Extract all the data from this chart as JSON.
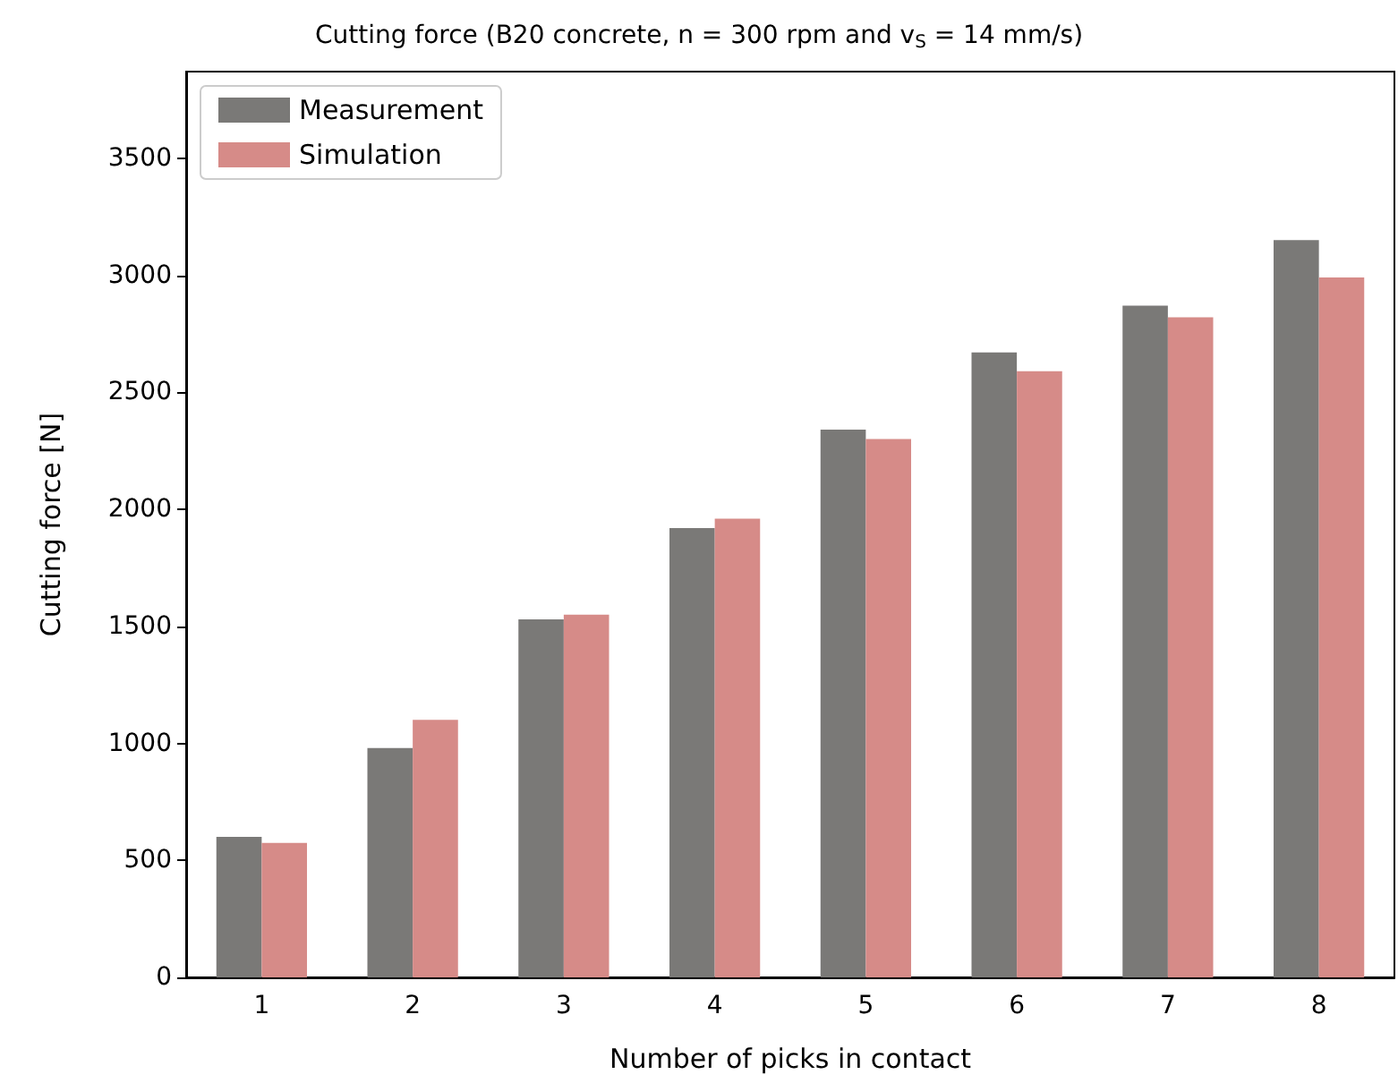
{
  "chart_data": {
    "type": "bar",
    "title": "Cutting force (B20 concrete, n = 300 rpm and v$_{S}$ = 14 mm/s)",
    "xlabel": "Number of picks in contact",
    "ylabel": "Cutting force [N]",
    "categories": [
      "1",
      "2",
      "3",
      "4",
      "5",
      "6",
      "7",
      "8"
    ],
    "series": [
      {
        "name": "Measurement",
        "color": "#7a7977",
        "values": [
          600,
          980,
          1530,
          1920,
          2340,
          2670,
          2870,
          3150
        ]
      },
      {
        "name": "Simulation",
        "color": "#d68b88",
        "values": [
          575,
          1100,
          1550,
          1960,
          2300,
          2590,
          2820,
          2990
        ]
      }
    ],
    "ylim": [
      0,
      3870
    ],
    "yticks": [
      0,
      500,
      1000,
      1500,
      2000,
      2500,
      3000,
      3500
    ],
    "grid": false,
    "legend": "top left"
  }
}
